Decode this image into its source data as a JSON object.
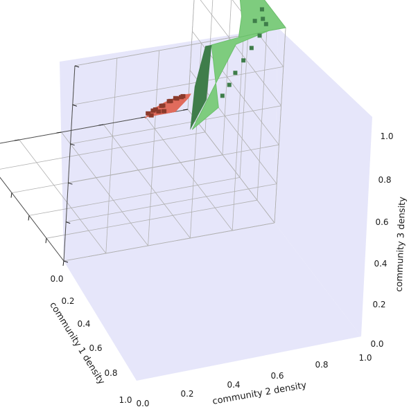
{
  "chart_data": {
    "type": "voxel3d",
    "title": "",
    "xlabel": "community 1 density",
    "ylabel": "community 2 density",
    "zlabel": "community 3 density",
    "xlim": [
      0,
      1
    ],
    "ylim": [
      0,
      1
    ],
    "zlim": [
      0,
      1
    ],
    "xticks": [
      "0.0",
      "0.2",
      "0.4",
      "0.6",
      "0.8",
      "1.0"
    ],
    "yticks": [
      "0.0",
      "0.2",
      "0.4",
      "0.6",
      "0.8",
      "1.0"
    ],
    "zticks": [
      "0.0",
      "0.2",
      "0.4",
      "0.6",
      "0.8",
      "1.0"
    ],
    "grid": true,
    "pane_color": "#e6e6fa",
    "series": [
      {
        "color": "#e06b5c",
        "dark_color": "#8a3a2c",
        "region": "near x=0, y=0: x from 0 to about 0.22, z from 0 to about 0.12"
      },
      {
        "color": "#7ecc7e",
        "dark_color": "#3f7d4a",
        "region": "around x=0, y=1: y from about 0.55 to 1.0, z from about 0.55 to 1.0"
      }
    ]
  }
}
